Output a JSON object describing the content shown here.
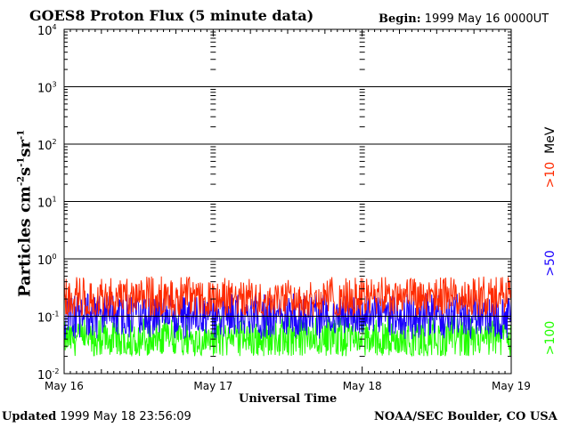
{
  "header": {
    "title": "GOES8 Proton Flux (5 minute data)",
    "begin_label": "Begin:",
    "begin_value": "1999 May 16 0000UT"
  },
  "footer": {
    "updated_label": "Updated",
    "updated_value": "1999 May 18 23:56:09",
    "credit": "NOAA/SEC Boulder, CO USA"
  },
  "colors": {
    "gt10": "#ff2a00",
    "gt50": "#1a00ff",
    "gt100": "#22ff00",
    "axis": "#000000"
  },
  "chart_data": {
    "type": "line",
    "title": "GOES8 Proton Flux (5 minute data)",
    "xlabel": "Universal Time",
    "ylabel": {
      "text": "Particles cm",
      "sup1": "-2",
      "mid1": "s",
      "sup2": "-1",
      "mid2": "sr",
      "sup3": "-1"
    },
    "y_scale": "log",
    "ylim": [
      0.01,
      10000
    ],
    "y_ticks": [
      {
        "value": 0.01,
        "base": "10",
        "exp": "-2"
      },
      {
        "value": 0.1,
        "base": "10",
        "exp": "-1"
      },
      {
        "value": 1,
        "base": "10",
        "exp": "0"
      },
      {
        "value": 10,
        "base": "10",
        "exp": "1"
      },
      {
        "value": 100,
        "base": "10",
        "exp": "2"
      },
      {
        "value": 1000,
        "base": "10",
        "exp": "3"
      },
      {
        "value": 10000,
        "base": "10",
        "exp": "4"
      }
    ],
    "x_ticks": [
      "May 16",
      "May 17",
      "May 18",
      "May 19"
    ],
    "xlim_days": [
      0,
      3
    ],
    "grid": "horizontal lines at each decade",
    "legend_placement": "right side, vertical",
    "energy_unit": "MeV",
    "series": [
      {
        "name": ">10",
        "color": "#ff2a00",
        "typical_value": 0.2,
        "min": 0.1,
        "max": 0.5
      },
      {
        "name": ">50",
        "color": "#1a00ff",
        "typical_value": 0.1,
        "min": 0.04,
        "max": 0.25
      },
      {
        "name": ">100",
        "color": "#22ff00",
        "typical_value": 0.04,
        "min": 0.02,
        "max": 0.1
      }
    ]
  }
}
